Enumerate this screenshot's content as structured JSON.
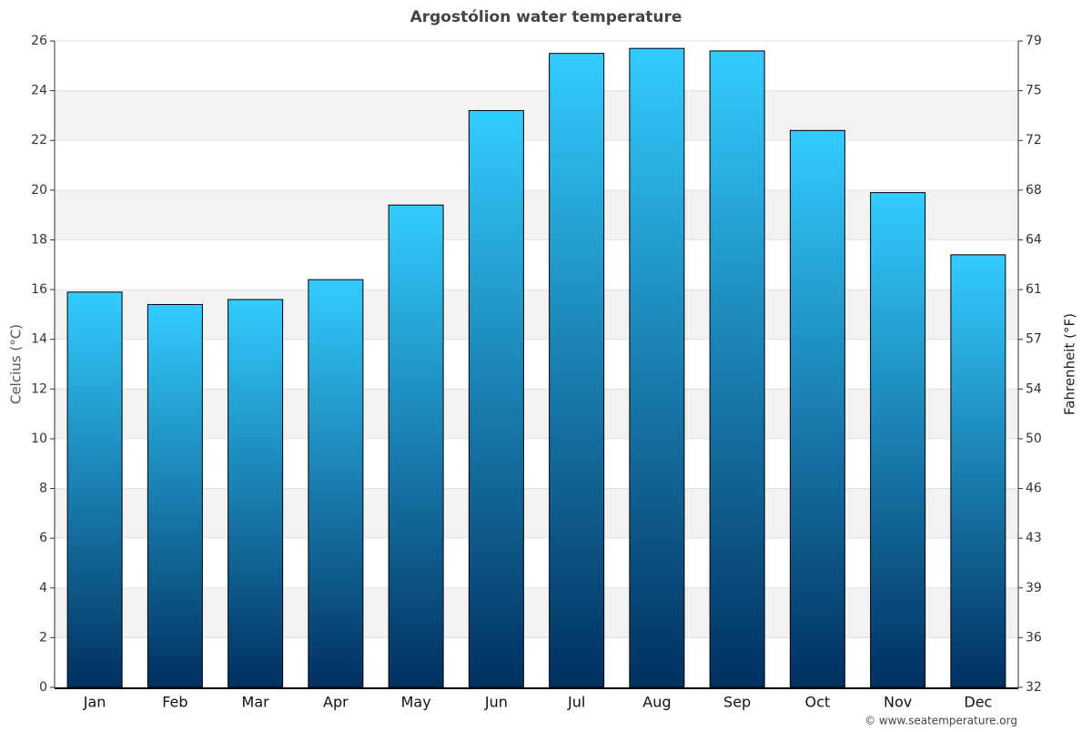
{
  "chart_data": {
    "type": "bar",
    "title": "Argostólion water temperature",
    "y_label": "Celcius (°C)",
    "y2_label": "Fahrenheit (°F)",
    "credit": "© www.seatemperature.org",
    "categories": [
      "Jan",
      "Feb",
      "Mar",
      "Apr",
      "May",
      "Jun",
      "Jul",
      "Aug",
      "Sep",
      "Oct",
      "Nov",
      "Dec"
    ],
    "values": [
      15.9,
      15.4,
      15.6,
      16.4,
      19.4,
      23.2,
      25.5,
      25.7,
      25.6,
      22.4,
      19.9,
      17.4
    ],
    "color": "#33ccff",
    "ylim": [
      0,
      26
    ],
    "yticks": [
      0,
      2,
      4,
      6,
      8,
      10,
      12,
      14,
      16,
      18,
      20,
      22,
      24,
      26
    ],
    "y2lim": [
      32,
      78.8
    ],
    "y2ticks": [
      32,
      {
        "value": 35.6,
        "label": "36"
      },
      {
        "value": 39.2,
        "label": "39"
      },
      {
        "value": 42.8,
        "label": "43"
      },
      {
        "value": 46.4,
        "label": "46"
      },
      50,
      {
        "value": 53.6,
        "label": "54"
      },
      {
        "value": 57.2,
        "label": "57"
      },
      {
        "value": 60.8,
        "label": "61"
      },
      {
        "value": 64.4,
        "label": "64"
      },
      68,
      {
        "value": 71.6,
        "label": "72"
      },
      {
        "value": 75.2,
        "label": "75"
      },
      {
        "value": 78.8,
        "label": "79"
      }
    ],
    "grid": true
  }
}
